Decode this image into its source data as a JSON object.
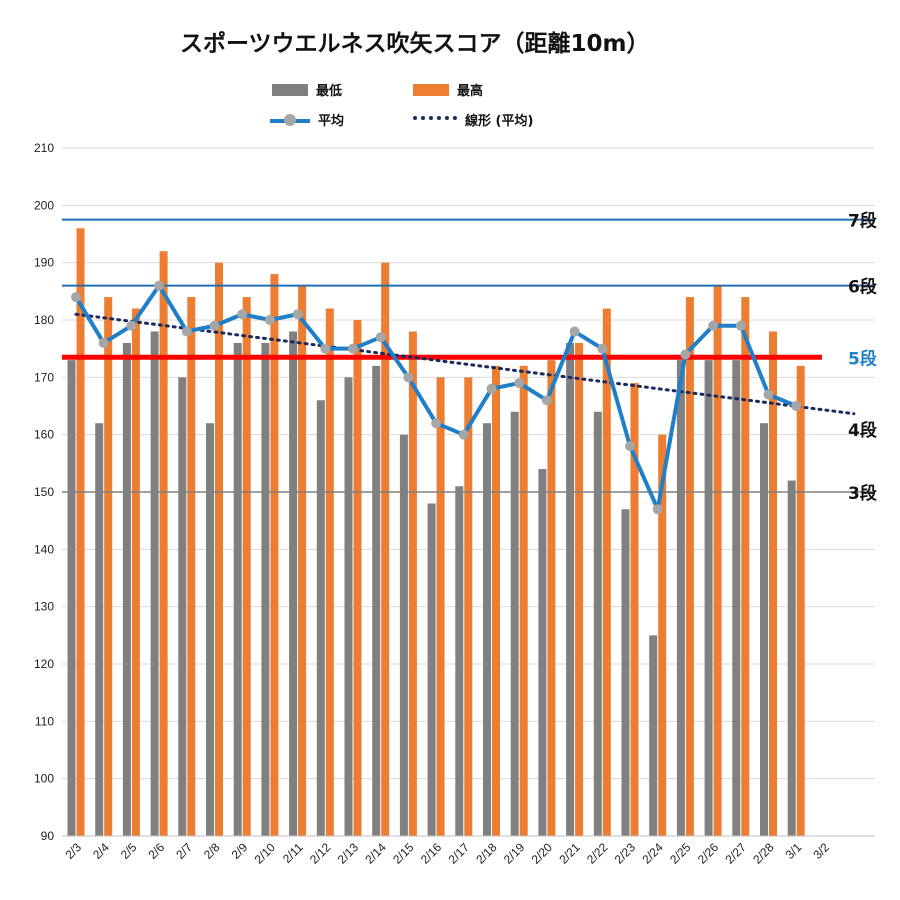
{
  "chart_data": {
    "type": "bar",
    "title": "スポーツウエルネス吹矢スコア（距離10m）",
    "categories": [
      "2/3",
      "2/4",
      "2/5",
      "2/6",
      "2/7",
      "2/8",
      "2/9",
      "2/10",
      "2/11",
      "2/12",
      "2/13",
      "2/14",
      "2/15",
      "2/16",
      "2/17",
      "2/18",
      "2/19",
      "2/20",
      "2/21",
      "2/22",
      "2/23",
      "2/24",
      "2/25",
      "2/26",
      "2/27",
      "2/28",
      "3/1",
      "3/2"
    ],
    "ylim": [
      90,
      210
    ],
    "yticks": [
      90,
      100,
      110,
      120,
      130,
      140,
      150,
      160,
      170,
      180,
      190,
      200,
      210
    ],
    "grid": true,
    "legend_position": "top",
    "series": [
      {
        "name": "最低",
        "type": "bar",
        "color": "#808080",
        "values": [
          173,
          162,
          176,
          178,
          170,
          162,
          176,
          176,
          178,
          166,
          170,
          172,
          160,
          148,
          151,
          162,
          164,
          154,
          176,
          164,
          147,
          125,
          173,
          173,
          173,
          162,
          152,
          null
        ]
      },
      {
        "name": "最高",
        "type": "bar",
        "color": "#ED7D31",
        "values": [
          196,
          184,
          182,
          192,
          184,
          190,
          184,
          188,
          186,
          182,
          180,
          190,
          178,
          170,
          170,
          172,
          172,
          173,
          176,
          182,
          169,
          160,
          184,
          186,
          184,
          178,
          172,
          null
        ]
      },
      {
        "name": "平均",
        "type": "line",
        "color": "#1F7FC8",
        "marker_color": "#A6A6A6",
        "values": [
          184,
          176,
          179,
          186,
          178,
          179,
          181,
          180,
          181,
          175,
          175,
          177,
          170,
          162,
          160,
          168,
          169,
          166,
          178,
          175,
          158,
          147,
          174,
          179,
          179,
          167,
          165,
          null
        ]
      },
      {
        "name": "線形 (平均)",
        "type": "trendline",
        "color": "#1B2A5E",
        "x_range": [
          "2/3",
          "3/2"
        ],
        "values_at_ends": [
          181,
          164
        ]
      }
    ],
    "reference_lines": [
      {
        "label": "7段",
        "value": 197.5,
        "color": "#1F6FB5",
        "label_color": "#111111"
      },
      {
        "label": "6段",
        "value": 186,
        "color": "#1F6FB5",
        "label_color": "#111111"
      },
      {
        "label": "5段",
        "value": 173.5,
        "color": "#FF0000",
        "label_color": "#1F7FC8"
      },
      {
        "label": "4段",
        "value": 161,
        "color": null,
        "label_color": "#111111"
      },
      {
        "label": "3段",
        "value": 150,
        "color": "#808080",
        "label_color": "#111111"
      }
    ]
  }
}
